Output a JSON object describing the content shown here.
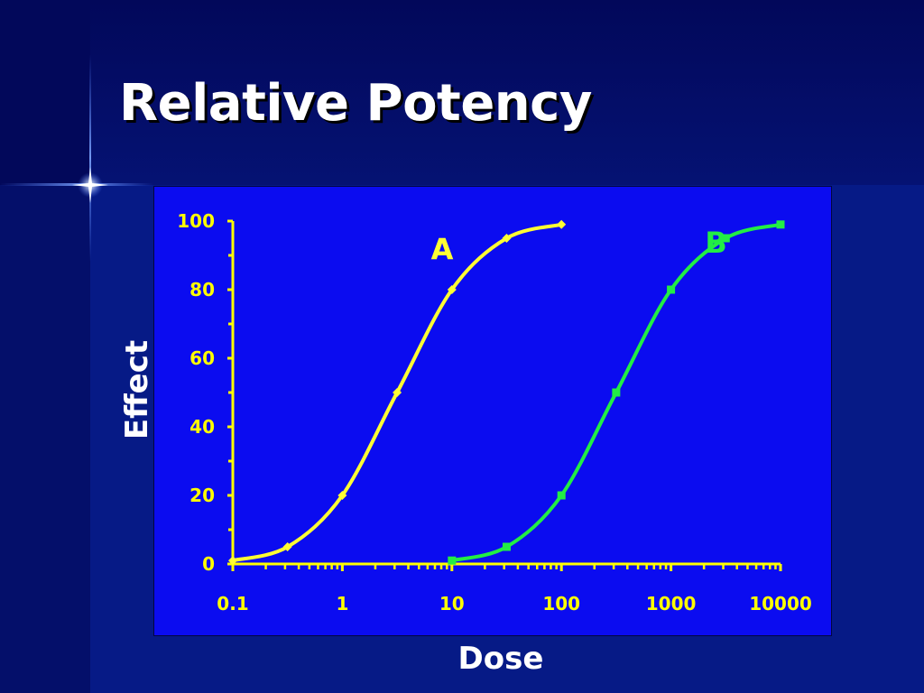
{
  "slide": {
    "title": "Relative Potency",
    "background_color": "#061a86",
    "panel_color": "#0b0cf0"
  },
  "chart_data": {
    "type": "line",
    "title": "",
    "xlabel": "Dose",
    "ylabel": "Effect",
    "x_scale": "log",
    "xlim": [
      0.1,
      10000
    ],
    "ylim": [
      0,
      100
    ],
    "x_ticks": [
      0.1,
      1,
      10,
      100,
      1000,
      10000
    ],
    "x_tick_labels": [
      "0.1",
      "1",
      "10",
      "100",
      "1000",
      "10000"
    ],
    "y_ticks": [
      0,
      20,
      40,
      60,
      80,
      100
    ],
    "y_tick_labels": [
      "0",
      "20",
      "40",
      "60",
      "80",
      "100"
    ],
    "axis_color": "#ffff00",
    "tick_label_color": "#ffff00",
    "series": [
      {
        "name": "A",
        "color": "#ffff33",
        "marker": "diamond",
        "x": [
          0.1,
          0.316,
          1,
          3.16,
          10,
          31.6,
          100
        ],
        "y": [
          1,
          5,
          20,
          50,
          80,
          95,
          99
        ]
      },
      {
        "name": "B",
        "color": "#22ee44",
        "marker": "square",
        "x": [
          10,
          31.6,
          100,
          316,
          1000,
          3160,
          10000
        ],
        "y": [
          1,
          5,
          20,
          50,
          80,
          95,
          99
        ]
      }
    ],
    "annotations": [
      {
        "text": "A",
        "x": 3.16,
        "y": 92,
        "color": "#ffff33"
      },
      {
        "text": "B",
        "x": 1000,
        "y": 94,
        "color": "#22ee44"
      }
    ]
  }
}
